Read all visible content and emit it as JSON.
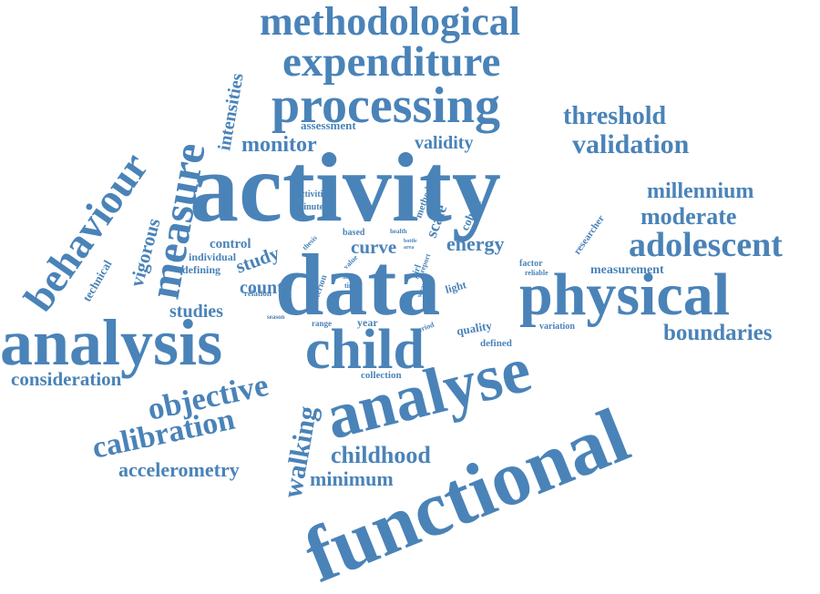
{
  "cloud": {
    "color": "#4a83b8",
    "words": {
      "methodological": "methodological",
      "expenditure": "expenditure",
      "processing": "processing",
      "threshold": "threshold",
      "validation": "validation",
      "validity": "validity",
      "monitor": "monitor",
      "assessment": "assessment",
      "intensities": "intensities",
      "activity": "activity",
      "measure": "measure",
      "behaviour": "behaviour",
      "vigorous": "vigorous",
      "technical": "technical",
      "control": "control",
      "activities": "activities",
      "minute": "minute",
      "method": "method",
      "scale": "scale",
      "cohort": "cohort",
      "researcher": "researcher",
      "millennium": "millennium",
      "moderate": "moderate",
      "adolescent": "adolescent",
      "individual": "individual",
      "defining": "defining",
      "study": "study",
      "count": "count",
      "thesis": "thesis",
      "based": "based",
      "health": "health",
      "bottle": "bottle",
      "area": "area",
      "curve": "curve",
      "energy": "energy",
      "factor": "factor",
      "reliable": "reliable",
      "measurement": "measurement",
      "data": "data",
      "physical": "physical",
      "relation": "relation",
      "criterion": "criterion",
      "value": "value",
      "intra": "intra",
      "time": "time",
      "report": "report",
      "girl": "girl",
      "wear": "wear",
      "light": "light",
      "studies": "studies",
      "season": "season",
      "range": "range",
      "year": "year",
      "period": "period",
      "quality": "quality",
      "variation": "variation",
      "defined": "defined",
      "boundaries": "boundaries",
      "analysis": "analysis",
      "child": "child",
      "consideration": "consideration",
      "objective": "objective",
      "collection": "collection",
      "analyse": "analyse",
      "walking": "walking",
      "calibration": "calibration",
      "childhood": "childhood",
      "accelerometry": "accelerometry",
      "minimum": "minimum",
      "functional": "functional"
    }
  }
}
